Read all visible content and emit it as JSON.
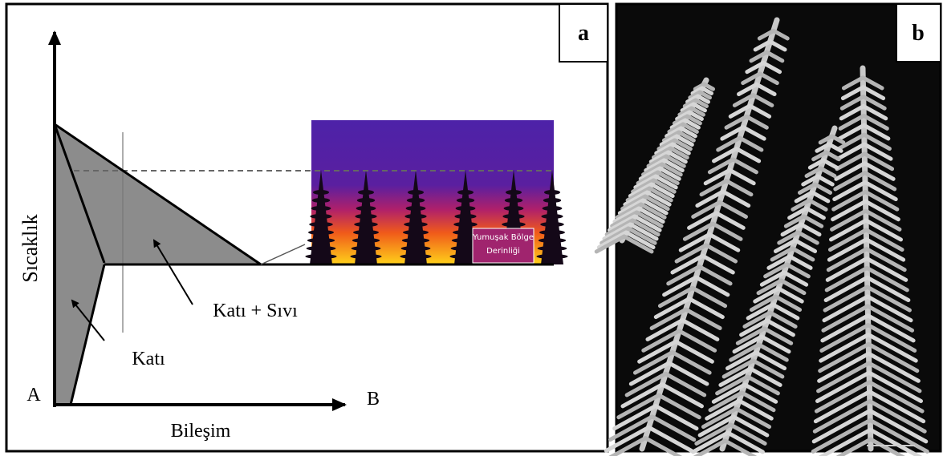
{
  "panels": [
    {
      "label": "a",
      "y_axis_label": "Sıcaklık",
      "x_axis_label": "Bileşim",
      "corner_labels": [
        "A",
        "B"
      ],
      "region_labels": [
        "Katı + Sıvı",
        "Katı"
      ],
      "inset_label": [
        "Yumuşak Bölge",
        "Derinliği"
      ]
    },
    {
      "label": "b"
    }
  ]
}
